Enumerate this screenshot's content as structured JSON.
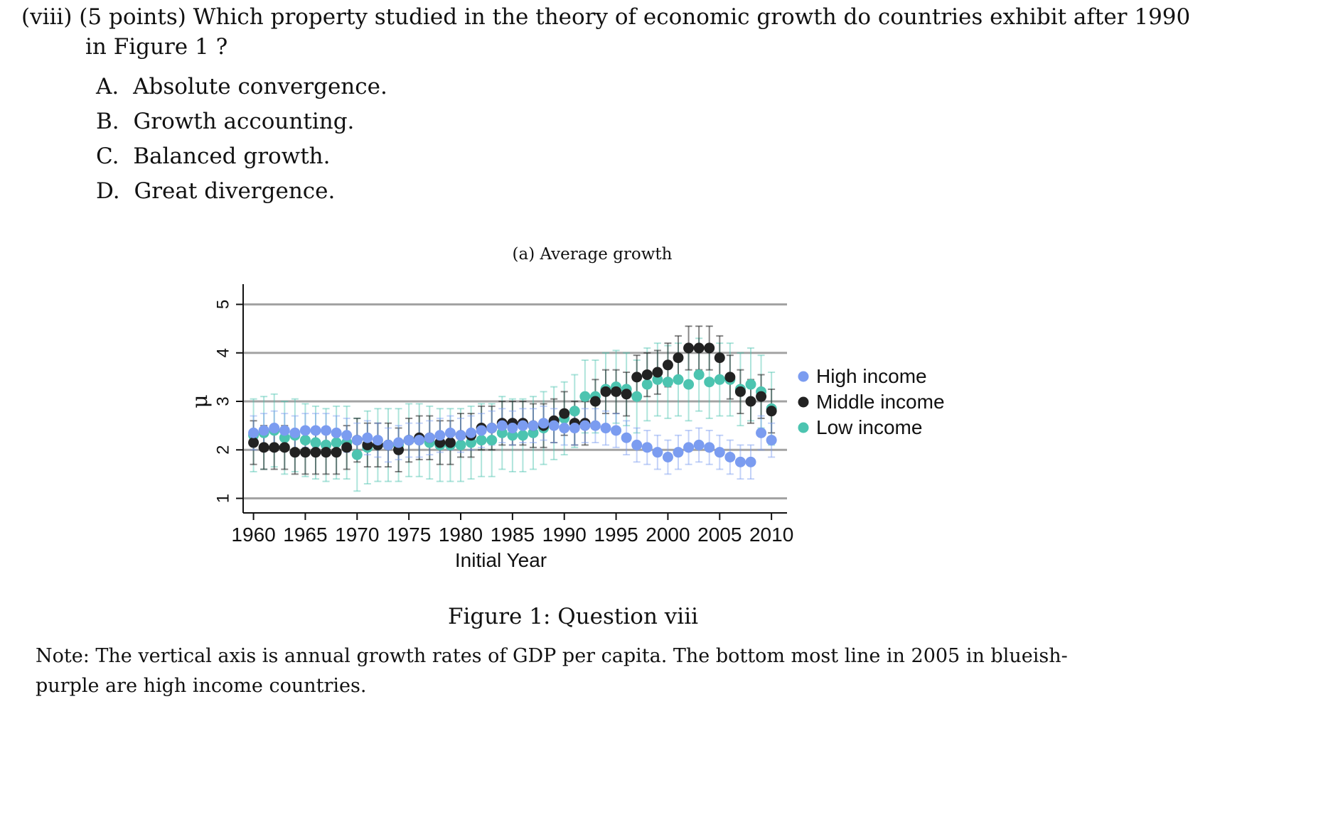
{
  "question": {
    "line1": "(viii)  (5 points)  Which property studied in the theory of economic growth do countries exhibit after 1990",
    "line2": "in Figure 1 ?"
  },
  "options": [
    {
      "letter": "A.",
      "text": "Absolute convergence."
    },
    {
      "letter": "B.",
      "text": "Growth accounting."
    },
    {
      "letter": "C.",
      "text": "Balanced growth."
    },
    {
      "letter": "D.",
      "text": "Great divergence."
    }
  ],
  "subcaption": "(a) Average growth",
  "figure_caption": "Figure 1:  Question viii",
  "note": {
    "line1": "Note:  The vertical axis is annual growth rates of GDP per capita.  The bottom most line in 2005 in blueish-",
    "line2": "purple are high income countries."
  },
  "chart_data": {
    "type": "scatter",
    "title": "(a) Average growth",
    "xlabel": "Initial Year",
    "ylabel": "μ",
    "xlim": [
      1959,
      2011.5
    ],
    "ylim": [
      0.7,
      5.3
    ],
    "xticks": [
      "1960",
      "1965",
      "1970",
      "1975",
      "1980",
      "1985",
      "1990",
      "1995",
      "2000",
      "2005",
      "2010"
    ],
    "yticks": [
      "1",
      "2",
      "3",
      "4",
      "5"
    ],
    "grid": true,
    "legend": "right",
    "colors": {
      "High income": "#7b9cf0",
      "Middle income": "#222222",
      "Low income": "#4cc4b0"
    },
    "x": [
      1960,
      1961,
      1962,
      1963,
      1964,
      1965,
      1966,
      1967,
      1968,
      1969,
      1970,
      1971,
      1972,
      1973,
      1974,
      1975,
      1976,
      1977,
      1978,
      1979,
      1980,
      1981,
      1982,
      1983,
      1984,
      1985,
      1986,
      1987,
      1988,
      1989,
      1990,
      1991,
      1992,
      1993,
      1994,
      1995,
      1996,
      1997,
      1998,
      1999,
      2000,
      2001,
      2002,
      2003,
      2004,
      2005,
      2006,
      2007,
      2008,
      2009,
      2010
    ],
    "series": [
      {
        "name": "High income",
        "values": [
          2.35,
          2.4,
          2.45,
          2.4,
          2.35,
          2.4,
          2.4,
          2.4,
          2.35,
          2.3,
          2.2,
          2.25,
          2.2,
          2.1,
          2.15,
          2.2,
          2.2,
          2.25,
          2.3,
          2.35,
          2.3,
          2.35,
          2.4,
          2.45,
          2.5,
          2.45,
          2.5,
          2.5,
          2.55,
          2.5,
          2.45,
          2.45,
          2.5,
          2.5,
          2.45,
          2.4,
          2.25,
          2.1,
          2.05,
          1.95,
          1.85,
          1.95,
          2.05,
          2.1,
          2.05,
          1.95,
          1.85,
          1.75,
          1.75,
          2.35,
          2.2
        ],
        "err": [
          0.35,
          0.35,
          0.35,
          0.35,
          0.35,
          0.35,
          0.35,
          0.35,
          0.35,
          0.35,
          0.35,
          0.35,
          0.35,
          0.35,
          0.35,
          0.35,
          0.35,
          0.35,
          0.35,
          0.35,
          0.35,
          0.35,
          0.35,
          0.35,
          0.35,
          0.35,
          0.35,
          0.35,
          0.35,
          0.35,
          0.35,
          0.35,
          0.35,
          0.35,
          0.35,
          0.35,
          0.35,
          0.35,
          0.35,
          0.35,
          0.35,
          0.35,
          0.35,
          0.35,
          0.35,
          0.35,
          0.35,
          0.35,
          0.35,
          0.35,
          0.35
        ]
      },
      {
        "name": "Middle income",
        "values": [
          2.15,
          2.05,
          2.05,
          2.05,
          1.95,
          1.95,
          1.95,
          1.95,
          1.95,
          2.05,
          2.2,
          2.1,
          2.1,
          2.1,
          2.0,
          2.2,
          2.25,
          2.25,
          2.15,
          2.15,
          2.3,
          2.3,
          2.45,
          2.45,
          2.55,
          2.55,
          2.55,
          2.5,
          2.5,
          2.6,
          2.75,
          2.55,
          2.55,
          3.0,
          3.2,
          3.2,
          3.15,
          3.5,
          3.55,
          3.6,
          3.75,
          3.9,
          4.1,
          4.1,
          4.1,
          3.9,
          3.5,
          3.2,
          3.0,
          3.1,
          2.8
        ],
        "err": [
          0.45,
          0.45,
          0.45,
          0.45,
          0.45,
          0.45,
          0.45,
          0.45,
          0.45,
          0.45,
          0.45,
          0.45,
          0.45,
          0.45,
          0.45,
          0.45,
          0.45,
          0.45,
          0.45,
          0.45,
          0.45,
          0.45,
          0.45,
          0.45,
          0.45,
          0.45,
          0.45,
          0.45,
          0.45,
          0.45,
          0.45,
          0.45,
          0.45,
          0.45,
          0.45,
          0.45,
          0.45,
          0.45,
          0.45,
          0.45,
          0.45,
          0.45,
          0.45,
          0.45,
          0.45,
          0.45,
          0.45,
          0.45,
          0.45,
          0.45,
          0.45
        ]
      },
      {
        "name": "Low income",
        "values": [
          2.3,
          2.35,
          2.4,
          2.25,
          2.3,
          2.2,
          2.15,
          2.1,
          2.15,
          2.15,
          1.9,
          2.05,
          2.1,
          2.1,
          2.1,
          2.2,
          2.2,
          2.15,
          2.1,
          2.1,
          2.1,
          2.15,
          2.2,
          2.2,
          2.35,
          2.3,
          2.3,
          2.35,
          2.45,
          2.55,
          2.65,
          2.8,
          3.1,
          3.1,
          3.25,
          3.3,
          3.25,
          3.1,
          3.35,
          3.45,
          3.4,
          3.45,
          3.35,
          3.55,
          3.4,
          3.45,
          3.45,
          3.25,
          3.35,
          3.2,
          2.85
        ],
        "err": [
          0.75,
          0.75,
          0.75,
          0.75,
          0.75,
          0.75,
          0.75,
          0.75,
          0.75,
          0.75,
          0.75,
          0.75,
          0.75,
          0.75,
          0.75,
          0.75,
          0.75,
          0.75,
          0.75,
          0.75,
          0.75,
          0.75,
          0.75,
          0.75,
          0.75,
          0.75,
          0.75,
          0.75,
          0.75,
          0.75,
          0.75,
          0.75,
          0.75,
          0.75,
          0.75,
          0.75,
          0.75,
          0.75,
          0.75,
          0.75,
          0.75,
          0.75,
          0.75,
          0.75,
          0.75,
          0.75,
          0.75,
          0.75,
          0.75,
          0.75,
          0.75
        ]
      }
    ]
  }
}
